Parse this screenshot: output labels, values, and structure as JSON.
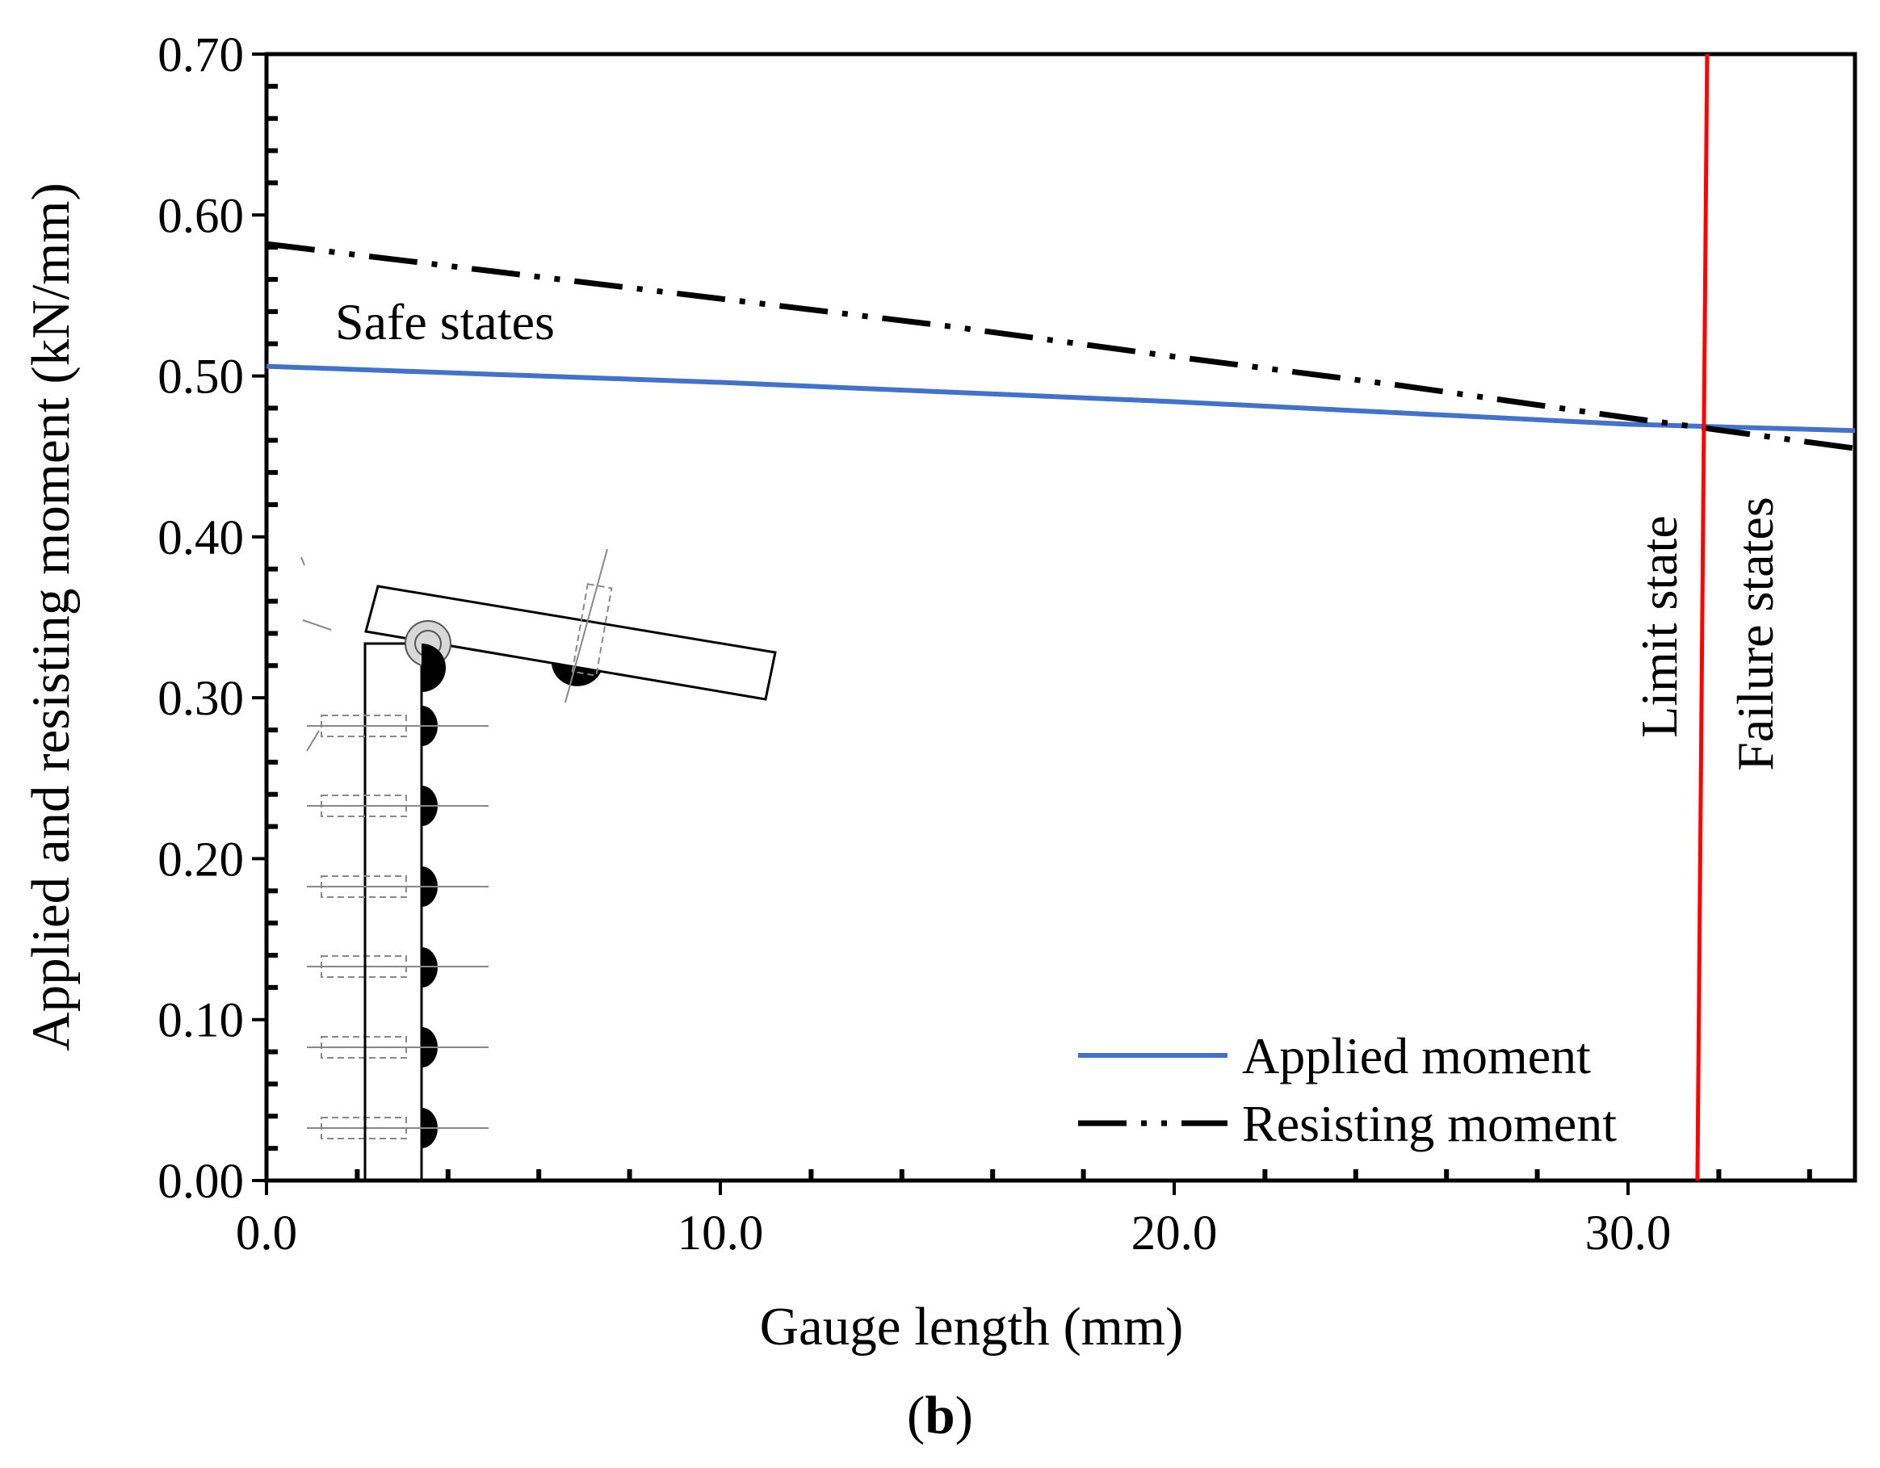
{
  "chart_data": {
    "type": "line",
    "xlabel": "Gauge length (mm)",
    "ylabel": "Applied and resisting moment (kN/mm)",
    "xlim": [
      0,
      35
    ],
    "ylim": [
      0,
      0.7
    ],
    "x_ticks": [
      "0.0",
      "10.0",
      "20.0",
      "30.0"
    ],
    "x_tick_values": [
      0,
      10,
      20,
      30
    ],
    "y_ticks": [
      "0.00",
      "0.10",
      "0.20",
      "0.30",
      "0.40",
      "0.50",
      "0.60",
      "0.70"
    ],
    "y_tick_values": [
      0,
      0.1,
      0.2,
      0.3,
      0.4,
      0.5,
      0.6,
      0.7
    ],
    "series": [
      {
        "name": "Applied moment",
        "style": "solid",
        "color": "#4472C4",
        "x": [
          0,
          5,
          10,
          15,
          20,
          25,
          30,
          35
        ],
        "y": [
          0.506,
          0.501,
          0.496,
          0.49,
          0.484,
          0.477,
          0.47,
          0.466
        ]
      },
      {
        "name": "Resisting moment",
        "style": "dash-dot-dot",
        "color": "#000000",
        "x": [
          0,
          5,
          10,
          15,
          20,
          25,
          30,
          35
        ],
        "y": [
          0.582,
          0.565,
          0.548,
          0.531,
          0.512,
          0.494,
          0.474,
          0.455
        ]
      }
    ],
    "limit_line": {
      "x": 31.6,
      "color": "#FF0000"
    },
    "annotations": {
      "safe": "Safe states",
      "limit": "Limit state",
      "failure": "Failure states"
    },
    "legend_position": "bottom-right",
    "panel_label": {
      "open": "(",
      "letter": "b",
      "close": ")"
    }
  }
}
